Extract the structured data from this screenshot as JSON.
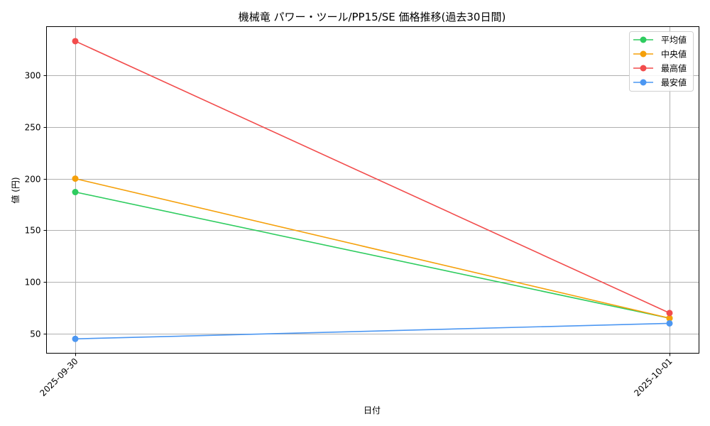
{
  "chart_data": {
    "type": "line",
    "title": "機械竜 パワー・ツール/PP15/SE 価格推移(過去30日間)",
    "xlabel": "日付",
    "ylabel": "値 (円)",
    "categories": [
      "2025-09-30",
      "2025-10-01"
    ],
    "series": [
      {
        "name": "平均値",
        "color": "#2ecc5f",
        "values": [
          187,
          65
        ]
      },
      {
        "name": "中央値",
        "color": "#f5a00a",
        "values": [
          200,
          65
        ]
      },
      {
        "name": "最高値",
        "color": "#f24c4c",
        "values": [
          333,
          70
        ]
      },
      {
        "name": "最安値",
        "color": "#4c97f2",
        "values": [
          45,
          60
        ]
      }
    ],
    "yticks": [
      50,
      100,
      150,
      200,
      250,
      300
    ],
    "ylim": [
      30.7,
      347
    ],
    "grid": true,
    "legend_position": "upper right",
    "marker": "circle"
  }
}
